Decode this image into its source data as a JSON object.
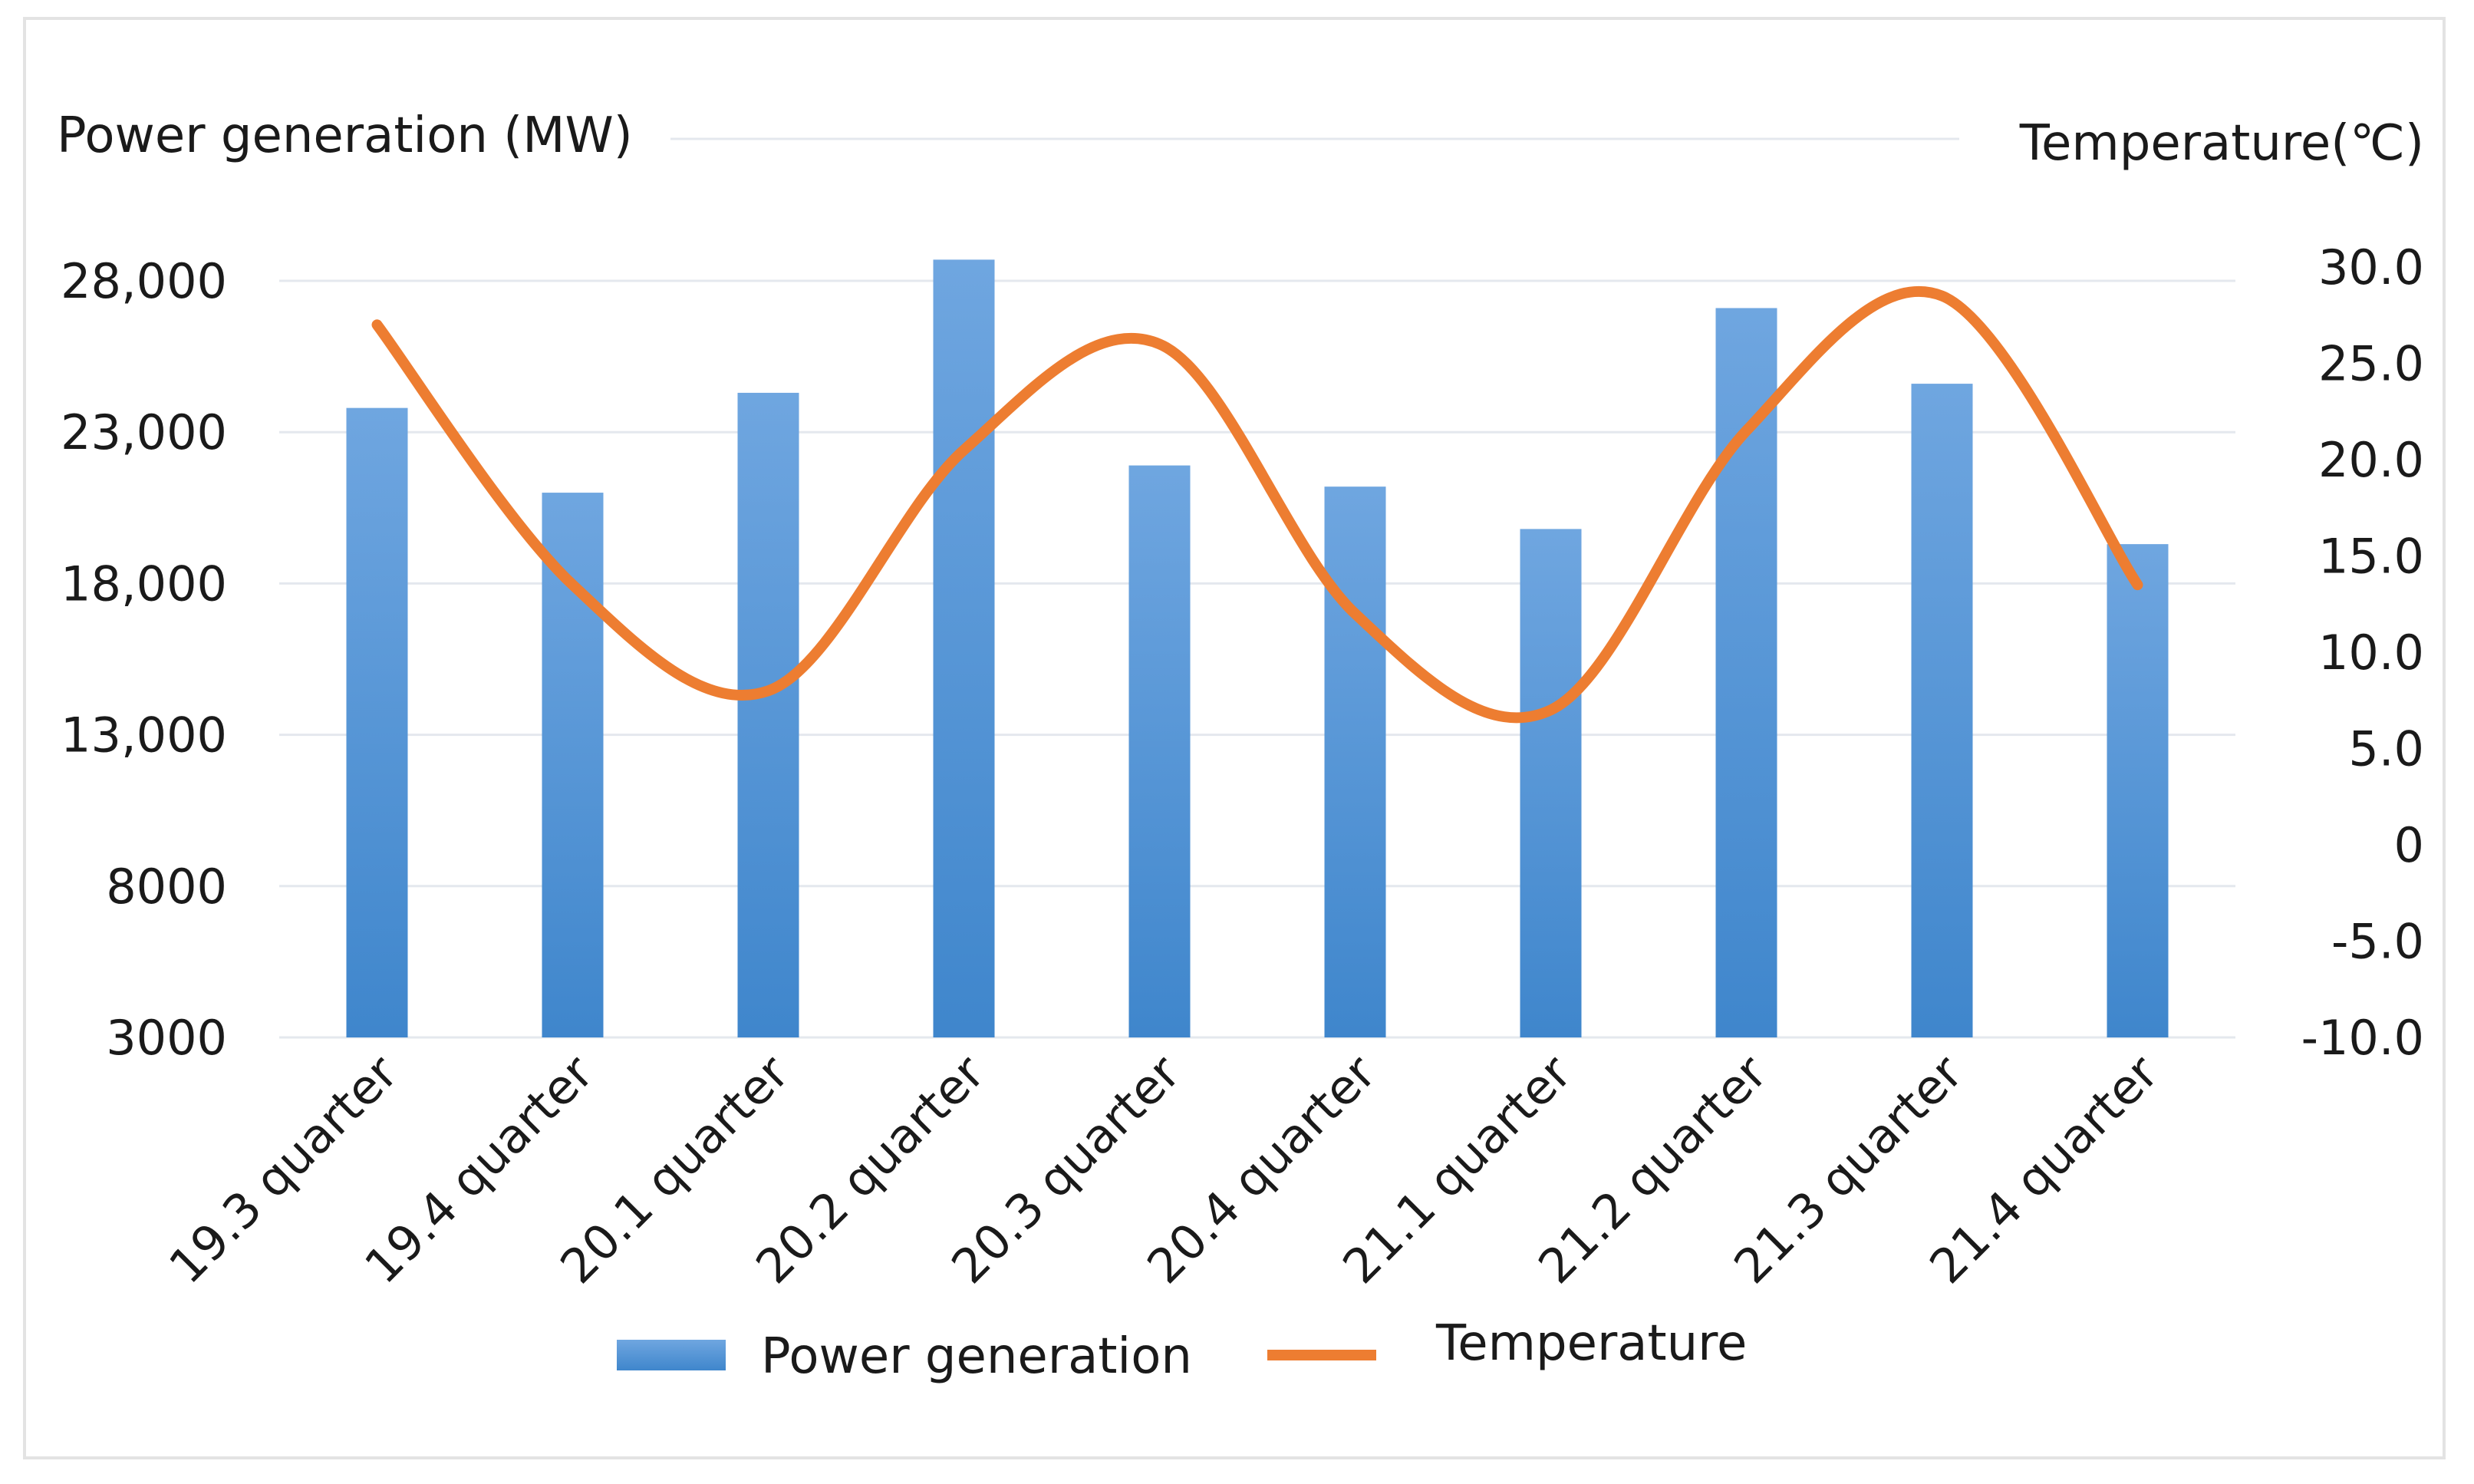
{
  "chart_data": {
    "type": "bar",
    "title": "",
    "categories": [
      "19.3 quarter",
      "19.4 quarter",
      "20.1 quarter",
      "20.2 quarter",
      "20.3 quarter",
      "20.4 quarter",
      "21.1 quarter",
      "21.2 quarter",
      "21.3 quarter",
      "21.4 quarter"
    ],
    "series": [
      {
        "name": "Power generation",
        "type": "bar",
        "axis": "left",
        "color": "#4a8fd5",
        "values": [
          23800,
          21000,
          24300,
          28700,
          21900,
          21200,
          19800,
          27100,
          24600,
          19300
        ]
      },
      {
        "name": "Temperature",
        "type": "line",
        "smooth": true,
        "axis": "right",
        "color": "#ed7d31",
        "values": [
          27.0,
          13.5,
          8.0,
          20.5,
          26.0,
          12.0,
          7.0,
          21.5,
          28.5,
          13.5
        ]
      }
    ],
    "ylabel": "Power generation (MW)",
    "y2label": "Temperature(℃)",
    "ylim": [
      3000,
      28000
    ],
    "yticks": [
      3000,
      8000,
      13000,
      18000,
      23000,
      28000
    ],
    "ytick_labels": [
      "3000",
      "8000",
      "13,000",
      "18,000",
      "23,000",
      "28,000"
    ],
    "y2lim": [
      -10,
      30
    ],
    "y2ticks": [
      -10,
      -5,
      0,
      5,
      10,
      15,
      20,
      25,
      30
    ],
    "y2tick_labels": [
      "-10.0",
      "-5.0",
      "0",
      "5.0",
      "10.0",
      "15.0",
      "20.0",
      "25.0",
      "30.0"
    ],
    "legend": [
      "Power generation",
      "Temperature"
    ],
    "legend_position": "bottom",
    "grid": true
  }
}
